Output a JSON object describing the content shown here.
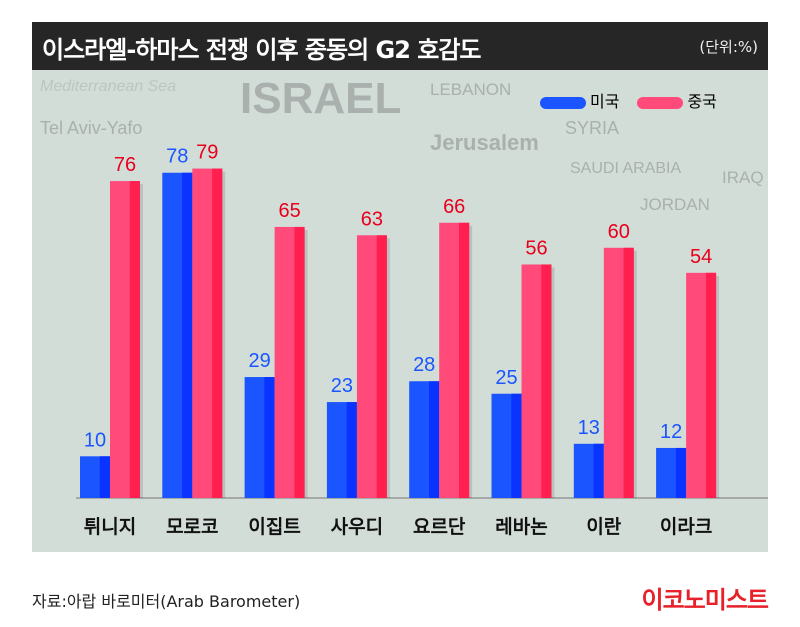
{
  "title": "이스라엘-하마스 전쟁 이후 중동의 G2 호감도",
  "unit": "(단위:%)",
  "map_labels": [
    "LEBANON",
    "SYRIA",
    "ISRAEL",
    "Tel Aviv-Yafo",
    "Jerusalem",
    "IRAQ",
    "Mediterranean Sea",
    "JORDAN",
    "SAUDI ARABIA"
  ],
  "source": "자료:아랍 바로미터(Arab Barometer)",
  "logo": "이코노미스트",
  "colors": {
    "us": "#1a55ff",
    "us_dark": "#0a33ff",
    "china": "#ff4a7a",
    "china_dark": "#ff2050",
    "us_label": "#1a55ff",
    "china_label": "#e8001c"
  },
  "chart_data": {
    "type": "bar",
    "title": "이스라엘-하마스 전쟁 이후 중동의 G2 호감도",
    "ylabel": "(단위:%)",
    "ylim": [
      0,
      100
    ],
    "grid": false,
    "legend": "top-right",
    "categories": [
      "튀니지",
      "모로코",
      "이집트",
      "사우디",
      "요르단",
      "레바논",
      "이란",
      "이라크"
    ],
    "series": [
      {
        "name": "미국",
        "values": [
          10,
          78,
          29,
          23,
          28,
          25,
          13,
          12
        ]
      },
      {
        "name": "중국",
        "values": [
          76,
          79,
          65,
          63,
          66,
          56,
          60,
          54
        ]
      }
    ]
  }
}
